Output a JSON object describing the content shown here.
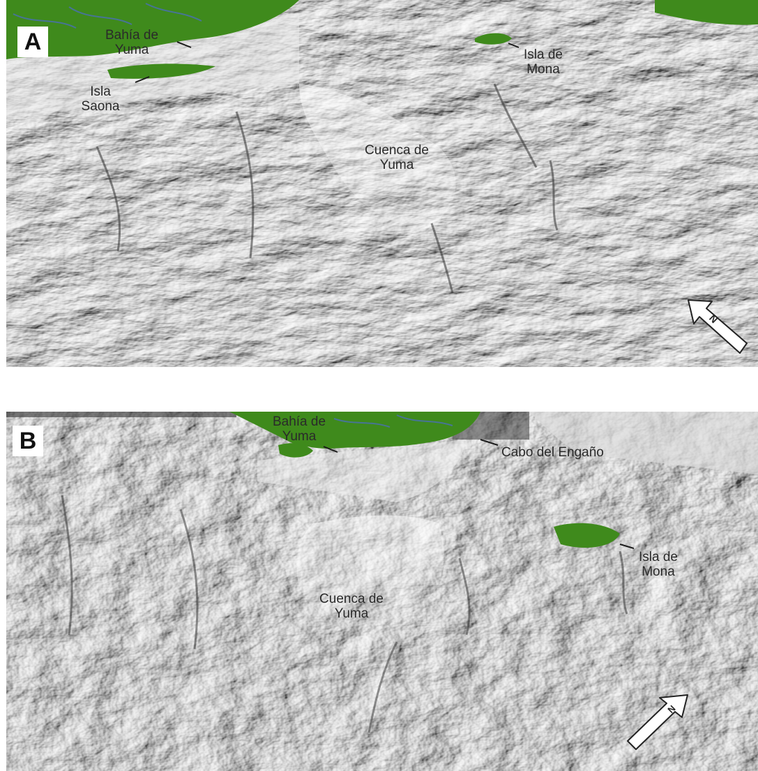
{
  "colors": {
    "land": "#3f8a1c",
    "relief_light": "#e4e4e4",
    "relief_dark": "#3a3a3a",
    "water": "#4a6fb5"
  },
  "panels": [
    {
      "letter": "A",
      "labels": {
        "bahia": "Bahía de\nYuma",
        "saona": "Isla\nSaona",
        "mona": "Isla de\nMona",
        "cuenca": "Cuenca de\nYuma"
      },
      "north_label": "N"
    },
    {
      "letter": "B",
      "labels": {
        "bahia": "Bahía de\nYuma",
        "cabo": "Cabo del Engaño",
        "mona": "Isla de\nMona",
        "cuenca": "Cuenca de\nYuma"
      },
      "north_label": "N"
    }
  ]
}
